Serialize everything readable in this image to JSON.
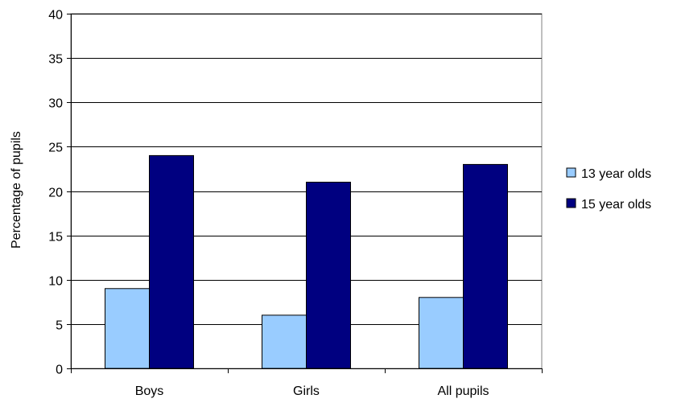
{
  "chart_data": {
    "type": "bar",
    "title": "",
    "xlabel": "",
    "ylabel": "Percentage of pupils",
    "ylim": [
      0,
      40
    ],
    "yticks": [
      0,
      5,
      10,
      15,
      20,
      25,
      30,
      35,
      40
    ],
    "grid": true,
    "legend_position": "right",
    "categories": [
      "Boys",
      "Girls",
      "All pupils"
    ],
    "series": [
      {
        "name": "13 year olds",
        "color": "#99ccff",
        "values": [
          9,
          6,
          8
        ]
      },
      {
        "name": "15 year olds",
        "color": "#000080",
        "values": [
          24,
          21,
          23
        ]
      }
    ]
  }
}
